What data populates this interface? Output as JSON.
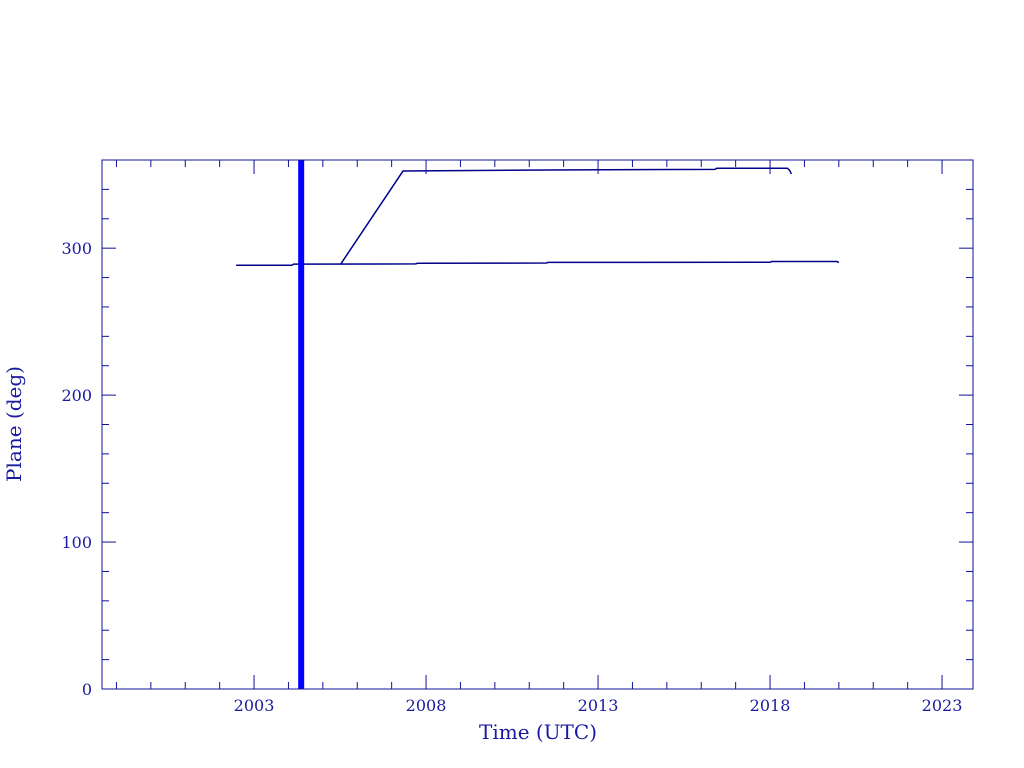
{
  "chart_data": {
    "type": "line",
    "title": "",
    "xlabel": "Time (UTC)",
    "ylabel": "Plane (deg)",
    "xlim": [
      1998.58,
      2023.9
    ],
    "ylim": [
      0,
      360
    ],
    "xticks": [
      2003,
      2008,
      2013,
      2018,
      2023
    ],
    "yticks": [
      0,
      100,
      200,
      300
    ],
    "grid": false,
    "colors": {
      "axis": "#10109a",
      "series": "#00008b",
      "marker_line": "#0000ff"
    },
    "series": [
      {
        "x": [
          2002.48,
          2004.1,
          2004.15,
          2007.7,
          2007.75,
          2011.5,
          2011.55,
          2018.0,
          2018.05,
          2019.95,
          2020.0
        ],
        "y": [
          288.4,
          288.4,
          289.1,
          289.3,
          289.7,
          289.9,
          290.3,
          290.4,
          290.9,
          290.9,
          290.2
        ]
      },
      {
        "x": [
          2005.52,
          2007.33,
          2011.5,
          2016.4,
          2016.45,
          2018.5,
          2018.57,
          2018.62
        ],
        "y": [
          289.2,
          352.5,
          353.2,
          353.6,
          354.4,
          354.4,
          353.0,
          350.5
        ]
      }
    ],
    "vertical_line": {
      "x": 2004.37
    }
  }
}
